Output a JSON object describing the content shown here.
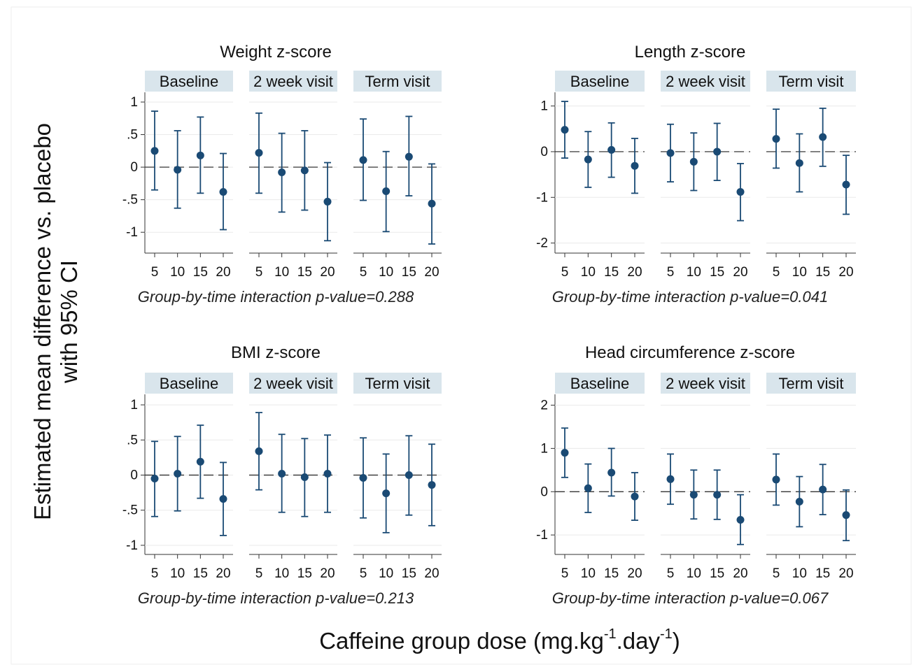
{
  "figure": {
    "y_label_line1": "Estimated mean difference vs. placebo",
    "y_label_line2": "with 95% CI",
    "x_label_pre": "Caffeine group dose (mg.kg",
    "x_label_sup1": "-1",
    "x_label_mid": ".day",
    "x_label_sup2": "-1",
    "x_label_post": ")",
    "colors": {
      "marker": "#1a4a74",
      "strip": "#d9e5ec",
      "gridline": "#eaeaea",
      "refline": "#222222"
    }
  },
  "chart_data": [
    {
      "type": "scatter",
      "title": "Weight z-score",
      "panels": [
        "Baseline",
        "2 week visit",
        "Term visit"
      ],
      "x": [
        5,
        10,
        15,
        20
      ],
      "x_tick_labels": [
        "5",
        "10",
        "15",
        "20"
      ],
      "yticks": [
        1,
        0.5,
        0,
        -0.5,
        -1
      ],
      "ytick_labels": [
        "1",
        ".5",
        "0",
        "-.5",
        "-1"
      ],
      "ylim": [
        -1.32,
        1.15
      ],
      "series": [
        {
          "estimate": [
            0.25,
            -0.04,
            0.18,
            -0.38
          ],
          "ci_lower": [
            -0.35,
            -0.63,
            -0.4,
            -0.96
          ],
          "ci_upper": [
            0.86,
            0.56,
            0.77,
            0.21
          ]
        },
        {
          "estimate": [
            0.22,
            -0.08,
            -0.05,
            -0.53
          ],
          "ci_lower": [
            -0.4,
            -0.69,
            -0.66,
            -1.13
          ],
          "ci_upper": [
            0.83,
            0.52,
            0.56,
            0.07
          ]
        },
        {
          "estimate": [
            0.11,
            -0.37,
            0.16,
            -0.56
          ],
          "ci_lower": [
            -0.51,
            -0.99,
            -0.44,
            -1.18
          ],
          "ci_upper": [
            0.74,
            0.24,
            0.78,
            0.05
          ]
        }
      ],
      "annotation": "Group-by-time interaction p-value=0.288"
    },
    {
      "type": "scatter",
      "title": "Length z-score",
      "panels": [
        "Baseline",
        "2 week visit",
        "Term visit"
      ],
      "x": [
        5,
        10,
        15,
        20
      ],
      "x_tick_labels": [
        "5",
        "10",
        "15",
        "20"
      ],
      "yticks": [
        1,
        0,
        -1,
        -2
      ],
      "ytick_labels": [
        "1",
        "0",
        "-1",
        "-2"
      ],
      "ylim": [
        -2.22,
        1.3
      ],
      "series": [
        {
          "estimate": [
            0.48,
            -0.17,
            0.04,
            -0.31
          ],
          "ci_lower": [
            -0.14,
            -0.78,
            -0.56,
            -0.91
          ],
          "ci_upper": [
            1.1,
            0.44,
            0.63,
            0.29
          ]
        },
        {
          "estimate": [
            -0.03,
            -0.22,
            0.0,
            -0.88
          ],
          "ci_lower": [
            -0.66,
            -0.85,
            -0.63,
            -1.51
          ],
          "ci_upper": [
            0.6,
            0.41,
            0.62,
            -0.26
          ]
        },
        {
          "estimate": [
            0.28,
            -0.25,
            0.32,
            -0.72
          ],
          "ci_lower": [
            -0.36,
            -0.88,
            -0.32,
            -1.37
          ],
          "ci_upper": [
            0.93,
            0.39,
            0.95,
            -0.08
          ]
        }
      ],
      "annotation": "Group-by-time interaction p-value=0.041"
    },
    {
      "type": "scatter",
      "title": "BMI z-score",
      "panels": [
        "Baseline",
        "2 week visit",
        "Term visit"
      ],
      "x": [
        5,
        10,
        15,
        20
      ],
      "x_tick_labels": [
        "5",
        "10",
        "15",
        "20"
      ],
      "yticks": [
        1,
        0.5,
        0,
        -0.5,
        -1
      ],
      "ytick_labels": [
        "1",
        ".5",
        "0",
        "-.5",
        "-1"
      ],
      "ylim": [
        -1.13,
        1.15
      ],
      "series": [
        {
          "estimate": [
            -0.05,
            0.02,
            0.19,
            -0.34
          ],
          "ci_lower": [
            -0.59,
            -0.51,
            -0.33,
            -0.86
          ],
          "ci_upper": [
            0.48,
            0.55,
            0.71,
            0.18
          ]
        },
        {
          "estimate": [
            0.34,
            0.02,
            -0.03,
            0.02
          ],
          "ci_lower": [
            -0.21,
            -0.53,
            -0.59,
            -0.53
          ],
          "ci_upper": [
            0.89,
            0.58,
            0.52,
            0.57
          ]
        },
        {
          "estimate": [
            -0.04,
            -0.26,
            0.0,
            -0.14
          ],
          "ci_lower": [
            -0.61,
            -0.82,
            -0.57,
            -0.72
          ],
          "ci_upper": [
            0.53,
            0.3,
            0.56,
            0.44
          ]
        }
      ],
      "annotation": "Group-by-time interaction p-value=0.213"
    },
    {
      "type": "scatter",
      "title": "Head circumference z-score",
      "panels": [
        "Baseline",
        "2 week visit",
        "Term visit"
      ],
      "x": [
        5,
        10,
        15,
        20
      ],
      "x_tick_labels": [
        "5",
        "10",
        "15",
        "20"
      ],
      "yticks": [
        2,
        1,
        0,
        -1
      ],
      "ytick_labels": [
        "2",
        "1",
        "0",
        "-1"
      ],
      "ylim": [
        -1.45,
        2.25
      ],
      "series": [
        {
          "estimate": [
            0.9,
            0.08,
            0.44,
            -0.11
          ],
          "ci_lower": [
            0.33,
            -0.48,
            -0.1,
            -0.66
          ],
          "ci_upper": [
            1.47,
            0.64,
            1.0,
            0.44
          ]
        },
        {
          "estimate": [
            0.29,
            -0.07,
            -0.07,
            -0.65
          ],
          "ci_lower": [
            -0.29,
            -0.63,
            -0.64,
            -1.22
          ],
          "ci_upper": [
            0.87,
            0.5,
            0.5,
            -0.07
          ]
        },
        {
          "estimate": [
            0.28,
            -0.23,
            0.05,
            -0.54
          ],
          "ci_lower": [
            -0.31,
            -0.81,
            -0.53,
            -1.13
          ],
          "ci_upper": [
            0.87,
            0.35,
            0.63,
            0.04
          ]
        }
      ],
      "annotation": "Group-by-time interaction p-value=0.067"
    }
  ]
}
